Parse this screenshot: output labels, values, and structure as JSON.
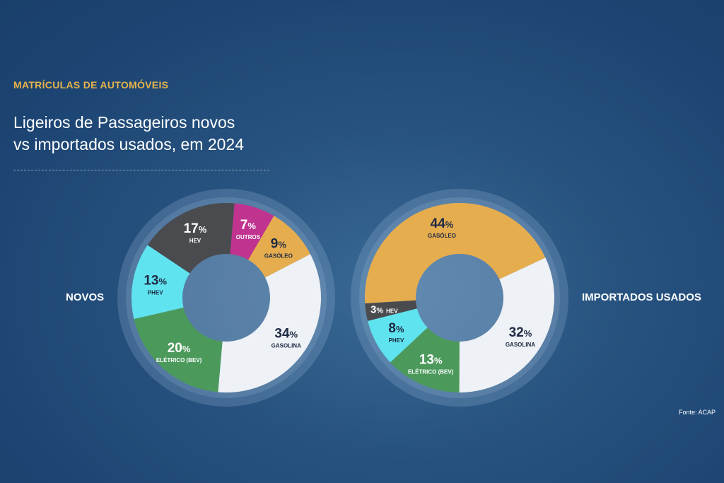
{
  "kicker": "MATRÍCULAS DE AUTOMÓVEIS",
  "title_line1": "Ligeiros de Passageiros novos",
  "title_line2": "vs importados usados, em 2024",
  "source": "Fonte: ACAP",
  "chart_data": [
    {
      "type": "pie",
      "variant": "donut",
      "label": "NOVOS",
      "categories": [
        "OUTROS",
        "GASÓLEO",
        "GASOLINA",
        "ELÉTRICO (BEV)",
        "PHEV",
        "HEV"
      ],
      "values": [
        7,
        9,
        34,
        20,
        13,
        17
      ],
      "colors": [
        "#c0338f",
        "#e6ad4f",
        "#eef1f5",
        "#4b9a5c",
        "#5fe3ee",
        "#4a4b4f"
      ],
      "text_colors": [
        "#ffffff",
        "#1e2a44",
        "#1e2a44",
        "#ffffff",
        "#1e2a44",
        "#ffffff"
      ],
      "unit": "%"
    },
    {
      "type": "pie",
      "variant": "donut",
      "label": "IMPORTADOS USADOS",
      "categories": [
        "GASOLINA",
        "ELÉTRICO (BEV)",
        "PHEV",
        "HEV",
        "GASÓLEO"
      ],
      "values": [
        32,
        13,
        8,
        3,
        44
      ],
      "colors": [
        "#eef1f5",
        "#4b9a5c",
        "#5fe3ee",
        "#4a4b4f",
        "#e6ad4f"
      ],
      "text_colors": [
        "#1e2a44",
        "#ffffff",
        "#1e2a44",
        "#ffffff",
        "#1e2a44"
      ],
      "unit": "%"
    }
  ]
}
